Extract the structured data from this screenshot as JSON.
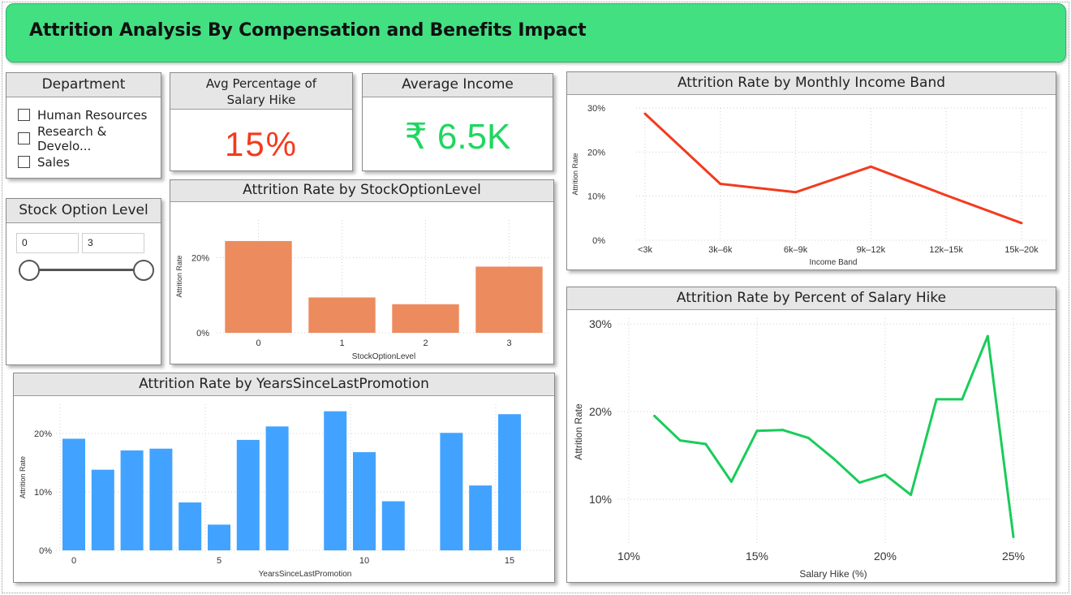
{
  "header": {
    "title": "Attrition Analysis By Compensation and Benefits Impact"
  },
  "department_slicer": {
    "title": "Department",
    "items": [
      "Human Resources",
      "Research & Develo...",
      "Sales"
    ]
  },
  "kpi_hike": {
    "title": "Avg Percentage of Salary Hike",
    "value": "15%"
  },
  "kpi_income": {
    "title": "Average Income",
    "value": "₹ 6.5K"
  },
  "stock_slicer": {
    "title": "Stock Option Level",
    "min": "0",
    "max": "3"
  },
  "colors": {
    "accent_green": "#43e082",
    "red": "#f43a1e",
    "green_text": "#1ed760",
    "orange_bar": "#ec8b5e",
    "blue_bar": "#41a3ff",
    "green_line": "#19cc5a"
  },
  "chart_data": [
    {
      "id": "income_band",
      "type": "line",
      "title": "Attrition Rate by Monthly Income Band",
      "xlabel": "Income Band",
      "ylabel": "Attrition Rate",
      "categories": [
        "<3k",
        "3k–6k",
        "6k–9k",
        "9k–12k",
        "12k–15k",
        "15k–20k"
      ],
      "values": [
        28.7,
        12.8,
        10.9,
        16.7,
        10.2,
        3.9
      ],
      "ylim": [
        0,
        30
      ],
      "yticks": [
        "0%",
        "10%",
        "20%",
        "30%"
      ],
      "color": "#f43a1e",
      "grid": true
    },
    {
      "id": "stock_option",
      "type": "bar",
      "title": "Attrition Rate by StockOptionLevel",
      "xlabel": "StockOptionLevel",
      "ylabel": "Attrition Rate",
      "categories": [
        "0",
        "1",
        "2",
        "3"
      ],
      "values": [
        24.4,
        9.4,
        7.6,
        17.6
      ],
      "ylim": [
        0,
        30
      ],
      "yticks": [
        "0%",
        "20%"
      ],
      "color": "#ec8b5e",
      "grid": true
    },
    {
      "id": "years_promotion",
      "type": "bar",
      "title": "Attrition Rate by YearsSinceLastPromotion",
      "xlabel": "YearsSinceLastPromotion",
      "ylabel": "Attrition Rate",
      "x": [
        0,
        1,
        2,
        3,
        4,
        5,
        6,
        7,
        9,
        10,
        11,
        13,
        14,
        15
      ],
      "values": [
        19.1,
        13.8,
        17.1,
        17.4,
        8.2,
        4.4,
        18.9,
        21.2,
        23.8,
        16.8,
        8.4,
        20.1,
        11.1,
        23.3
      ],
      "ylim": [
        0,
        25
      ],
      "xticks": [
        "0",
        "5",
        "10",
        "15"
      ],
      "yticks": [
        "0%",
        "10%",
        "20%"
      ],
      "color": "#41a3ff",
      "grid": true
    },
    {
      "id": "salary_hike",
      "type": "line",
      "title": "Attrition Rate by Percent of Salary Hike",
      "xlabel": "Salary Hike (%)",
      "ylabel": "Attrition Rate",
      "x": [
        11,
        12,
        13,
        14,
        15,
        16,
        17,
        18,
        19,
        20,
        21,
        22,
        23,
        24,
        25
      ],
      "values": [
        19.5,
        16.7,
        16.3,
        12.0,
        17.8,
        17.9,
        17.0,
        14.6,
        11.9,
        12.8,
        10.5,
        21.4,
        21.4,
        28.6,
        5.7
      ],
      "ylim": [
        5,
        30
      ],
      "xlim": [
        10,
        25
      ],
      "xticks": [
        "10%",
        "15%",
        "20%",
        "25%"
      ],
      "yticks": [
        "10%",
        "20%",
        "30%"
      ],
      "color": "#19cc5a",
      "grid": true
    }
  ]
}
